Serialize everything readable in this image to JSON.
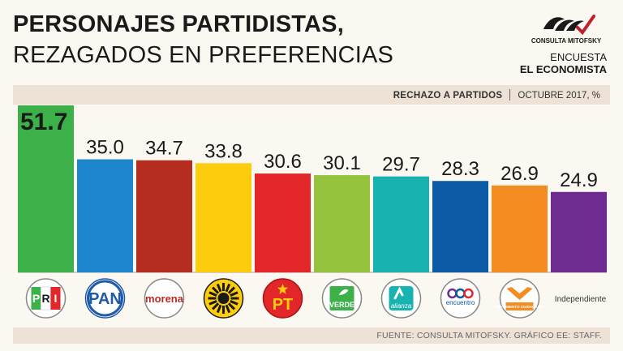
{
  "header": {
    "title_line1": "PERSONAJES PARTIDISTAS,",
    "title_line2": "REZAGADOS EN PREFERENCIAS"
  },
  "brand": {
    "logo_text": "CONSULTA MITOFSKY",
    "line1": "ENCUESTA",
    "line2": "EL ECONOMISTA"
  },
  "banner": {
    "label": "RECHAZO A PARTIDOS",
    "detail": "OCTUBRE 2017, %"
  },
  "source": "FUENTE: CONSULTA MITOFSKY. GRÁFICO EE: STAFF.",
  "colors": {
    "background": "#fbf7f1",
    "banner": "#ede2d5",
    "PRI": "#3cb149",
    "PAN": "#1d86cc",
    "Morena": "#b52d20",
    "PRD": "#fdcc0c",
    "PT": "#e2262a",
    "Verde": "#96c33d",
    "Nueva Alianza": "#18b3b0",
    "Encuentro Social": "#0a5aa5",
    "Movimiento Ciudadano": "#f38c21",
    "Independiente": "#6e2c90"
  },
  "chart_data": {
    "type": "bar",
    "categories": [
      "PRI",
      "PAN",
      "Morena",
      "PRD",
      "PT",
      "Verde",
      "Nueva Alianza",
      "Encuentro Social",
      "Movimiento Ciudadano",
      "Independiente"
    ],
    "values": [
      51.7,
      35.0,
      34.7,
      33.8,
      30.6,
      30.1,
      29.7,
      28.3,
      26.9,
      24.9
    ],
    "value_labels": [
      "51.7",
      "35.0",
      "34.7",
      "33.8",
      "30.6",
      "30.1",
      "29.7",
      "28.3",
      "26.9",
      "24.9"
    ],
    "bar_colors": [
      "#3cb149",
      "#1d86cc",
      "#b52d20",
      "#fdcc0c",
      "#e2262a",
      "#96c33d",
      "#18b3b0",
      "#0a5aa5",
      "#f38c21",
      "#6e2c90"
    ],
    "logos": [
      {
        "icon": "pri-logo",
        "text": "PRI"
      },
      {
        "icon": "pan-logo",
        "text": "PAN"
      },
      {
        "icon": "morena-logo",
        "text": "morena"
      },
      {
        "icon": "prd-logo",
        "text": ""
      },
      {
        "icon": "pt-logo",
        "text": "PT"
      },
      {
        "icon": "verde-logo",
        "text": "VERDE"
      },
      {
        "icon": "alianza-logo",
        "text": "alianza"
      },
      {
        "icon": "encuentro-social-logo",
        "text": "encuentro"
      },
      {
        "icon": "movimiento-ciudadano-logo",
        "text": "MOVIMIENTO CIUDADANO"
      },
      {
        "icon": "",
        "text": "Independiente"
      }
    ],
    "ylim": [
      0,
      51.7
    ],
    "xlabel": "",
    "ylabel": "",
    "grid": false,
    "legend": "none"
  }
}
